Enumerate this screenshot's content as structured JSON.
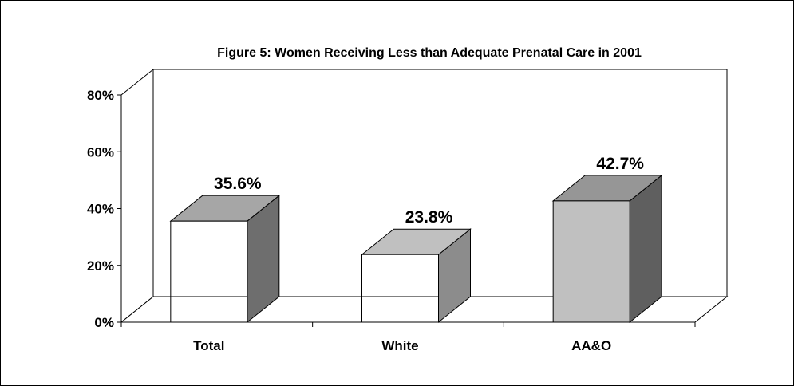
{
  "chart_data": {
    "type": "bar",
    "title": "Figure 5: Women Receiving Less than Adequate Prenatal Care in 2001",
    "categories": [
      "Total",
      "White",
      "AA&O"
    ],
    "values": [
      35.6,
      23.8,
      42.7
    ],
    "data_labels": [
      "35.6%",
      "23.8%",
      "42.7%"
    ],
    "ylim": [
      0,
      80
    ],
    "yticks": [
      0,
      20,
      40,
      60,
      80
    ],
    "ytick_labels": [
      "0%",
      "20%",
      "40%",
      "60%",
      "80%"
    ],
    "xlabel": "",
    "ylabel": "",
    "bar_front_colors": [
      "#ffffff",
      "#ffffff",
      "#c0c0c0"
    ],
    "bar_top_colors": [
      "#a6a6a6",
      "#c0c0c0",
      "#969696"
    ],
    "bar_side_colors": [
      "#6e6e6e",
      "#8c8c8c",
      "#5f5f5f"
    ],
    "three_d": true,
    "legend": "none"
  }
}
